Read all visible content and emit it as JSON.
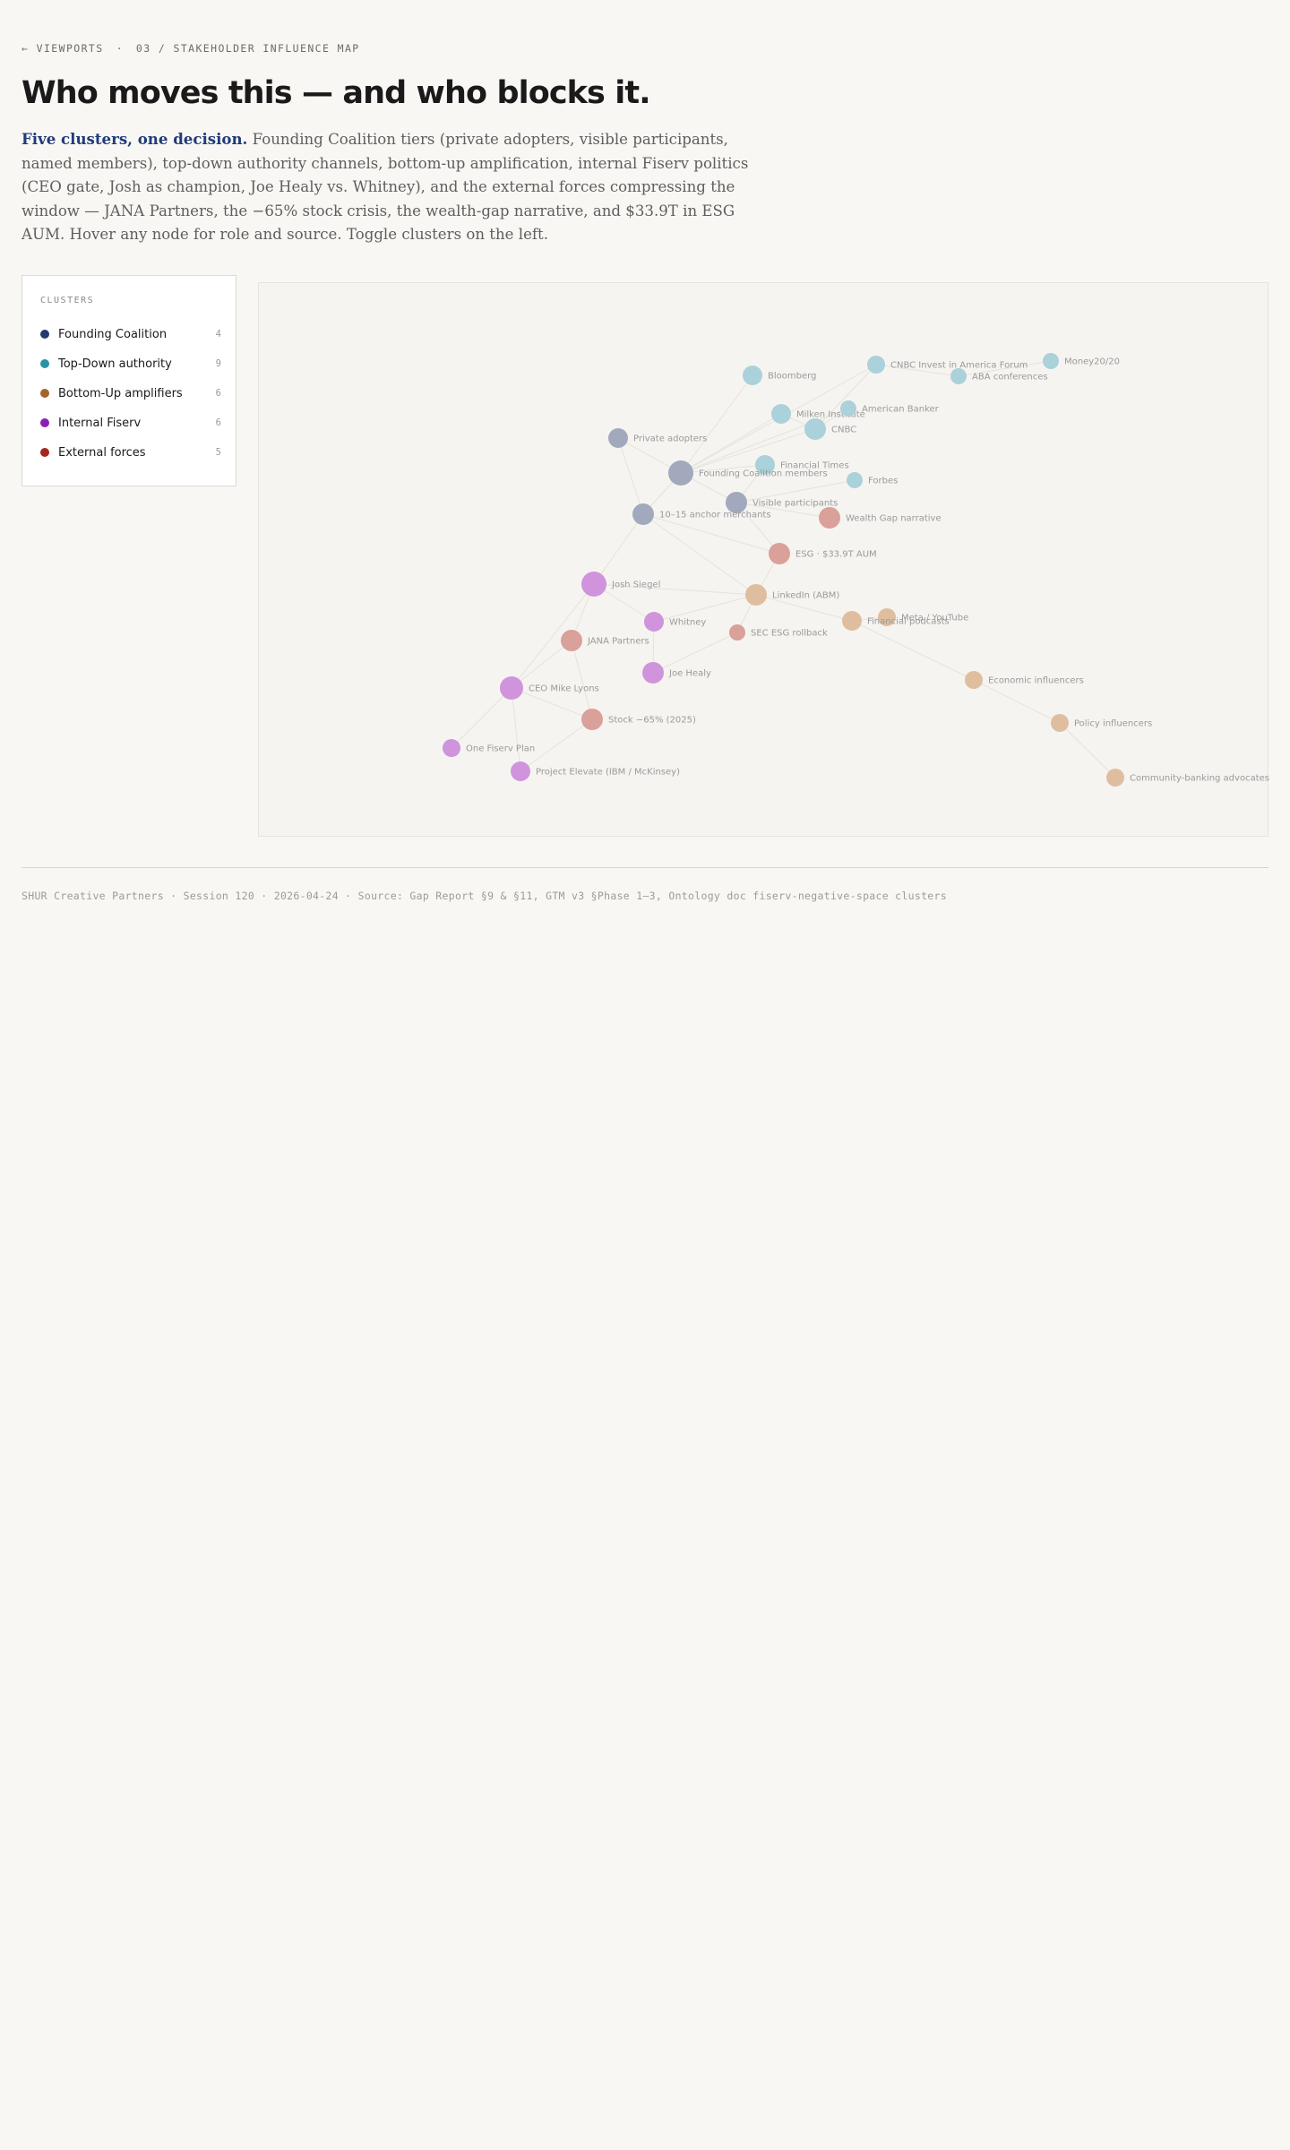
{
  "nav": {
    "back_label": "← VIEWPORTS",
    "separator": "·",
    "current": "03 / STAKEHOLDER INFLUENCE MAP"
  },
  "header": {
    "title": "Who moves this — and who blocks it.",
    "lede_lead": "Five clusters, one decision.",
    "lede_body": " Founding Coalition tiers (private adopters, visible participants, named members), top-down authority channels, bottom-up amplification, internal Fiserv politics (CEO gate, Josh as champion, Joe Healy vs. Whitney), and the external forces compressing the window — JANA Partners, the −65% stock crisis, the wealth-gap narrative, and $33.9T in ESG AUM. Hover any node for role and source. Toggle clusters on the left."
  },
  "legend": {
    "title": "CLUSTERS",
    "items": [
      {
        "id": "founding",
        "label": "Founding Coalition",
        "count": "4",
        "color": "#233a6e"
      },
      {
        "id": "topdown",
        "label": "Top-Down authority",
        "count": "9",
        "color": "#2a93a3"
      },
      {
        "id": "bottomup",
        "label": "Bottom-Up amplifiers",
        "count": "6",
        "color": "#a3662a"
      },
      {
        "id": "internal",
        "label": "Internal Fiserv",
        "count": "6",
        "color": "#8a1fb5"
      },
      {
        "id": "external",
        "label": "External forces",
        "count": "5",
        "color": "#a3261f"
      }
    ]
  },
  "graph": {
    "node_colors": {
      "founding": "#a2a9bc",
      "topdown": "#abd1da",
      "bottomup": "#dfbe9f",
      "internal": "#cf94dc",
      "external": "#daa09a"
    },
    "nodes": [
      {
        "id": "bloomberg",
        "label": "Bloomberg",
        "cluster": "topdown"
      },
      {
        "id": "cnbc-forum",
        "label": "CNBC Invest in America Forum",
        "cluster": "topdown"
      },
      {
        "id": "aba",
        "label": "ABA conferences",
        "cluster": "topdown"
      },
      {
        "id": "money2020",
        "label": "Money20/20",
        "cluster": "topdown"
      },
      {
        "id": "milken",
        "label": "Milken Institute",
        "cluster": "topdown"
      },
      {
        "id": "american-banker",
        "label": "American Banker",
        "cluster": "topdown"
      },
      {
        "id": "cnbc",
        "label": "CNBC",
        "cluster": "topdown"
      },
      {
        "id": "ft",
        "label": "Financial Times",
        "cluster": "topdown"
      },
      {
        "id": "forbes",
        "label": "Forbes",
        "cluster": "topdown"
      },
      {
        "id": "private-adopters",
        "label": "Private adopters",
        "cluster": "founding"
      },
      {
        "id": "founding-members",
        "label": "Founding Coalition members",
        "cluster": "founding"
      },
      {
        "id": "visible",
        "label": "Visible participants",
        "cluster": "founding"
      },
      {
        "id": "anchor",
        "label": "10–15 anchor merchants",
        "cluster": "founding"
      },
      {
        "id": "wealth-gap",
        "label": "Wealth Gap narrative",
        "cluster": "external"
      },
      {
        "id": "esg",
        "label": "ESG · $33.9T AUM",
        "cluster": "external"
      },
      {
        "id": "josh",
        "label": "Josh Siegel",
        "cluster": "internal"
      },
      {
        "id": "linkedin",
        "label": "LinkedIn (ABM)",
        "cluster": "bottomup"
      },
      {
        "id": "meta",
        "label": "Meta / YouTube",
        "cluster": "bottomup"
      },
      {
        "id": "fin-podcasts",
        "label": "Financial podcasts",
        "cluster": "bottomup"
      },
      {
        "id": "whitney",
        "label": "Whitney",
        "cluster": "internal"
      },
      {
        "id": "sec",
        "label": "SEC ESG rollback",
        "cluster": "external"
      },
      {
        "id": "jana",
        "label": "JANA Partners",
        "cluster": "external"
      },
      {
        "id": "joe",
        "label": "Joe Healy",
        "cluster": "internal"
      },
      {
        "id": "ceo",
        "label": "CEO Mike Lyons",
        "cluster": "internal"
      },
      {
        "id": "econ-inf",
        "label": "Economic influencers",
        "cluster": "bottomup"
      },
      {
        "id": "stock",
        "label": "Stock −65% (2025)",
        "cluster": "external"
      },
      {
        "id": "policy-inf",
        "label": "Policy influencers",
        "cluster": "bottomup"
      },
      {
        "id": "one-fiserv",
        "label": "One Fiserv Plan",
        "cluster": "internal"
      },
      {
        "id": "elevate",
        "label": "Project Elevate (IBM / McKinsey)",
        "cluster": "internal"
      },
      {
        "id": "community",
        "label": "Community-banking advocates",
        "cluster": "bottomup"
      }
    ],
    "edges": [
      [
        "founding-members",
        "private-adopters"
      ],
      [
        "founding-members",
        "visible"
      ],
      [
        "founding-members",
        "anchor"
      ],
      [
        "founding-members",
        "bloomberg"
      ],
      [
        "founding-members",
        "milken"
      ],
      [
        "founding-members",
        "cnbc"
      ],
      [
        "founding-members",
        "ft"
      ],
      [
        "founding-members",
        "american-banker"
      ],
      [
        "founding-members",
        "cnbc-forum"
      ],
      [
        "visible",
        "forbes"
      ],
      [
        "visible",
        "ft"
      ],
      [
        "visible",
        "wealth-gap"
      ],
      [
        "visible",
        "esg"
      ],
      [
        "cnbc",
        "milken"
      ],
      [
        "cnbc",
        "american-banker"
      ],
      [
        "cnbc",
        "cnbc-forum"
      ],
      [
        "cnbc-forum",
        "aba"
      ],
      [
        "aba",
        "money2020"
      ],
      [
        "private-adopters",
        "anchor"
      ],
      [
        "anchor",
        "josh"
      ],
      [
        "anchor",
        "linkedin"
      ],
      [
        "anchor",
        "esg"
      ],
      [
        "josh",
        "whitney"
      ],
      [
        "josh",
        "jana"
      ],
      [
        "josh",
        "ceo"
      ],
      [
        "josh",
        "linkedin"
      ],
      [
        "whitney",
        "joe"
      ],
      [
        "whitney",
        "linkedin"
      ],
      [
        "linkedin",
        "sec"
      ],
      [
        "linkedin",
        "fin-podcasts"
      ],
      [
        "linkedin",
        "esg"
      ],
      [
        "fin-podcasts",
        "meta"
      ],
      [
        "fin-podcasts",
        "econ-inf"
      ],
      [
        "econ-inf",
        "policy-inf"
      ],
      [
        "policy-inf",
        "community"
      ],
      [
        "jana",
        "ceo"
      ],
      [
        "jana",
        "stock"
      ],
      [
        "ceo",
        "one-fiserv"
      ],
      [
        "ceo",
        "elevate"
      ],
      [
        "ceo",
        "stock"
      ],
      [
        "joe",
        "sec"
      ],
      [
        "stock",
        "elevate"
      ]
    ]
  },
  "footer": {
    "text": "SHUR Creative Partners · Session 120 · 2026-04-24 · Source: Gap Report §9 & §11, GTM v3 §Phase 1–3, Ontology doc fiserv-negative-space clusters"
  }
}
